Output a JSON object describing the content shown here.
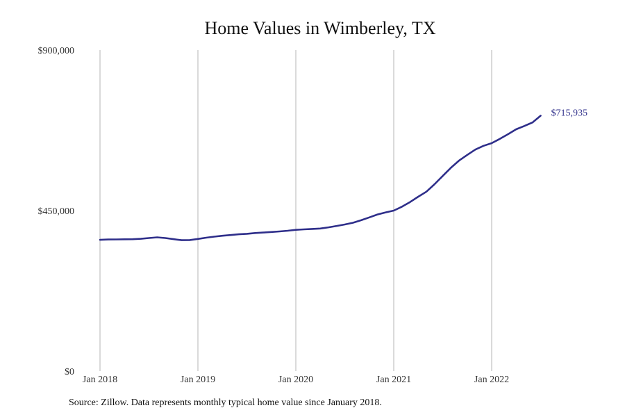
{
  "chart_data": {
    "type": "line",
    "title": "Home Values in Wimberley, TX",
    "xlabel": "",
    "ylabel": "",
    "x_tick_labels": [
      "Jan 2018",
      "Jan 2019",
      "Jan 2020",
      "Jan 2021",
      "Jan 2022"
    ],
    "x_tick_dates": [
      "2018-01",
      "2019-01",
      "2020-01",
      "2021-01",
      "2022-01"
    ],
    "y_tick_labels": [
      "$0",
      "$450,000",
      "$900,000"
    ],
    "y_tick_values": [
      0,
      450000,
      900000
    ],
    "ylim": [
      0,
      900000
    ],
    "xlim": [
      "2018-01",
      "2022-09"
    ],
    "grid": "vertical",
    "line_color": "#2e2e8a",
    "grid_color": "#b5b5b5",
    "end_label": "$715,935",
    "series": [
      {
        "x": [
          "2018-01",
          "2018-02",
          "2018-03",
          "2018-04",
          "2018-05",
          "2018-06",
          "2018-07",
          "2018-08",
          "2018-09",
          "2018-10",
          "2018-11",
          "2018-12",
          "2019-01",
          "2019-02",
          "2019-03",
          "2019-04",
          "2019-05",
          "2019-06",
          "2019-07",
          "2019-08",
          "2019-09",
          "2019-10",
          "2019-11",
          "2019-12",
          "2020-01",
          "2020-02",
          "2020-03",
          "2020-04",
          "2020-05",
          "2020-06",
          "2020-07",
          "2020-08",
          "2020-09",
          "2020-10",
          "2020-11",
          "2020-12",
          "2021-01",
          "2021-02",
          "2021-03",
          "2021-04",
          "2021-05",
          "2021-06",
          "2021-07",
          "2021-08",
          "2021-09",
          "2021-10",
          "2021-11",
          "2021-12",
          "2022-01",
          "2022-02",
          "2022-03",
          "2022-04",
          "2022-05",
          "2022-06",
          "2022-07"
        ],
        "values": [
          368000,
          369000,
          369200,
          369500,
          369800,
          371000,
          373000,
          375000,
          373000,
          370000,
          367000,
          367500,
          370500,
          374000,
          377000,
          379500,
          381500,
          383500,
          385000,
          387000,
          388500,
          390000,
          391500,
          393500,
          396000,
          397500,
          398500,
          399800,
          403000,
          407000,
          411000,
          416000,
          423000,
          431000,
          439000,
          445000,
          450000,
          461000,
          474000,
          489000,
          503000,
          524000,
          547000,
          570000,
          590000,
          606000,
          621000,
          631500,
          639000,
          651000,
          664000,
          678000,
          687000,
          697000,
          715935
        ]
      }
    ]
  },
  "source": "Source: Zillow. Data represents monthly typical home value since January 2018."
}
